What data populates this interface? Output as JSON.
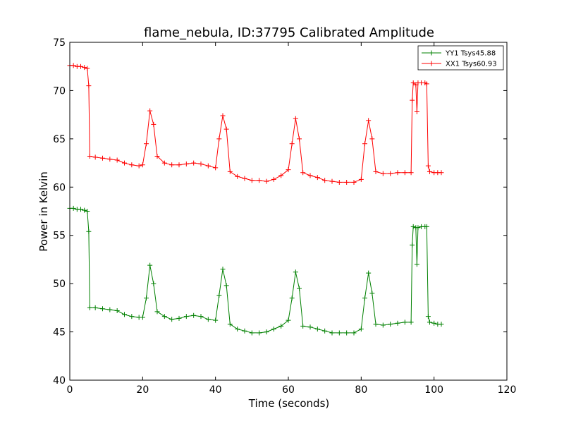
{
  "chart_data": {
    "type": "line",
    "title": "flame_nebula, ID:37795 Calibrated Amplitude",
    "xlabel": "Time (seconds)",
    "ylabel": "Power in Kelvin",
    "xlim": [
      0,
      120
    ],
    "ylim": [
      40,
      75
    ],
    "xticks": [
      0,
      20,
      40,
      60,
      80,
      100,
      120
    ],
    "yticks": [
      40,
      45,
      50,
      55,
      60,
      65,
      70,
      75
    ],
    "xtick_labels": [
      "0",
      "20",
      "40",
      "60",
      "80",
      "100",
      "120"
    ],
    "ytick_labels": [
      "40",
      "45",
      "50",
      "55",
      "60",
      "65",
      "70",
      "75"
    ],
    "grid": false,
    "legend_position": "top-right",
    "series": [
      {
        "name": "YY1 Tsys45.88",
        "color": "#008000",
        "marker": "plus",
        "points": [
          [
            0,
            57.8
          ],
          [
            1,
            57.8
          ],
          [
            2,
            57.7
          ],
          [
            3,
            57.7
          ],
          [
            4,
            57.6
          ],
          [
            4.8,
            57.5
          ],
          [
            5.2,
            55.4
          ],
          [
            5.5,
            47.5
          ],
          [
            7,
            47.5
          ],
          [
            9,
            47.4
          ],
          [
            11,
            47.3
          ],
          [
            13,
            47.2
          ],
          [
            15,
            46.8
          ],
          [
            17,
            46.6
          ],
          [
            19,
            46.5
          ],
          [
            20,
            46.5
          ],
          [
            21,
            48.5
          ],
          [
            22,
            51.9
          ],
          [
            23,
            50.0
          ],
          [
            24,
            47.1
          ],
          [
            26,
            46.6
          ],
          [
            28,
            46.3
          ],
          [
            30,
            46.4
          ],
          [
            32,
            46.6
          ],
          [
            34,
            46.7
          ],
          [
            36,
            46.6
          ],
          [
            38,
            46.3
          ],
          [
            40,
            46.2
          ],
          [
            41,
            48.8
          ],
          [
            42,
            51.5
          ],
          [
            43,
            49.8
          ],
          [
            44,
            45.8
          ],
          [
            46,
            45.3
          ],
          [
            48,
            45.1
          ],
          [
            50,
            44.9
          ],
          [
            52,
            44.9
          ],
          [
            54,
            45.0
          ],
          [
            56,
            45.3
          ],
          [
            58,
            45.6
          ],
          [
            60,
            46.2
          ],
          [
            61,
            48.5
          ],
          [
            62,
            51.2
          ],
          [
            63,
            49.5
          ],
          [
            64,
            45.6
          ],
          [
            66,
            45.5
          ],
          [
            68,
            45.3
          ],
          [
            70,
            45.1
          ],
          [
            72,
            44.9
          ],
          [
            74,
            44.9
          ],
          [
            76,
            44.9
          ],
          [
            78,
            44.9
          ],
          [
            80,
            45.3
          ],
          [
            81,
            48.5
          ],
          [
            82,
            51.1
          ],
          [
            83,
            49.0
          ],
          [
            84,
            45.8
          ],
          [
            86,
            45.7
          ],
          [
            88,
            45.8
          ],
          [
            90,
            45.9
          ],
          [
            92,
            46.0
          ],
          [
            93.7,
            46.0
          ],
          [
            94,
            54.0
          ],
          [
            94.3,
            55.9
          ],
          [
            95,
            55.8
          ],
          [
            95.3,
            52.0
          ],
          [
            95.6,
            55.8
          ],
          [
            96.5,
            55.9
          ],
          [
            97.5,
            55.9
          ],
          [
            98,
            55.9
          ],
          [
            98.4,
            46.6
          ],
          [
            98.8,
            46.0
          ],
          [
            100,
            45.9
          ],
          [
            101,
            45.8
          ],
          [
            102,
            45.8
          ]
        ]
      },
      {
        "name": "XX1 Tsys60.93",
        "color": "#ff0000",
        "marker": "plus",
        "points": [
          [
            0,
            72.6
          ],
          [
            1,
            72.6
          ],
          [
            2,
            72.5
          ],
          [
            3,
            72.5
          ],
          [
            4,
            72.4
          ],
          [
            4.8,
            72.3
          ],
          [
            5.2,
            70.5
          ],
          [
            5.5,
            63.2
          ],
          [
            7,
            63.1
          ],
          [
            9,
            63.0
          ],
          [
            11,
            62.9
          ],
          [
            13,
            62.8
          ],
          [
            15,
            62.5
          ],
          [
            17,
            62.3
          ],
          [
            19,
            62.2
          ],
          [
            20,
            62.3
          ],
          [
            21,
            64.5
          ],
          [
            22,
            67.9
          ],
          [
            23,
            66.5
          ],
          [
            24,
            63.2
          ],
          [
            26,
            62.5
          ],
          [
            28,
            62.3
          ],
          [
            30,
            62.3
          ],
          [
            32,
            62.4
          ],
          [
            34,
            62.5
          ],
          [
            36,
            62.4
          ],
          [
            38,
            62.2
          ],
          [
            40,
            62.0
          ],
          [
            41,
            65.0
          ],
          [
            42,
            67.4
          ],
          [
            43,
            66.0
          ],
          [
            44,
            61.6
          ],
          [
            46,
            61.1
          ],
          [
            48,
            60.9
          ],
          [
            50,
            60.7
          ],
          [
            52,
            60.7
          ],
          [
            54,
            60.6
          ],
          [
            56,
            60.8
          ],
          [
            58,
            61.2
          ],
          [
            60,
            61.8
          ],
          [
            61,
            64.5
          ],
          [
            62,
            67.1
          ],
          [
            63,
            65.0
          ],
          [
            64,
            61.5
          ],
          [
            66,
            61.2
          ],
          [
            68,
            61.0
          ],
          [
            70,
            60.7
          ],
          [
            72,
            60.6
          ],
          [
            74,
            60.5
          ],
          [
            76,
            60.5
          ],
          [
            78,
            60.5
          ],
          [
            80,
            60.8
          ],
          [
            81,
            64.5
          ],
          [
            82,
            66.9
          ],
          [
            83,
            65.0
          ],
          [
            84,
            61.6
          ],
          [
            86,
            61.4
          ],
          [
            88,
            61.4
          ],
          [
            90,
            61.5
          ],
          [
            92,
            61.5
          ],
          [
            93.7,
            61.5
          ],
          [
            94,
            69.0
          ],
          [
            94.3,
            70.8
          ],
          [
            95,
            70.6
          ],
          [
            95.3,
            67.8
          ],
          [
            95.6,
            70.8
          ],
          [
            96.5,
            70.8
          ],
          [
            97.5,
            70.8
          ],
          [
            98,
            70.7
          ],
          [
            98.4,
            62.2
          ],
          [
            98.8,
            61.6
          ],
          [
            100,
            61.5
          ],
          [
            101,
            61.5
          ],
          [
            102,
            61.5
          ]
        ]
      }
    ]
  }
}
